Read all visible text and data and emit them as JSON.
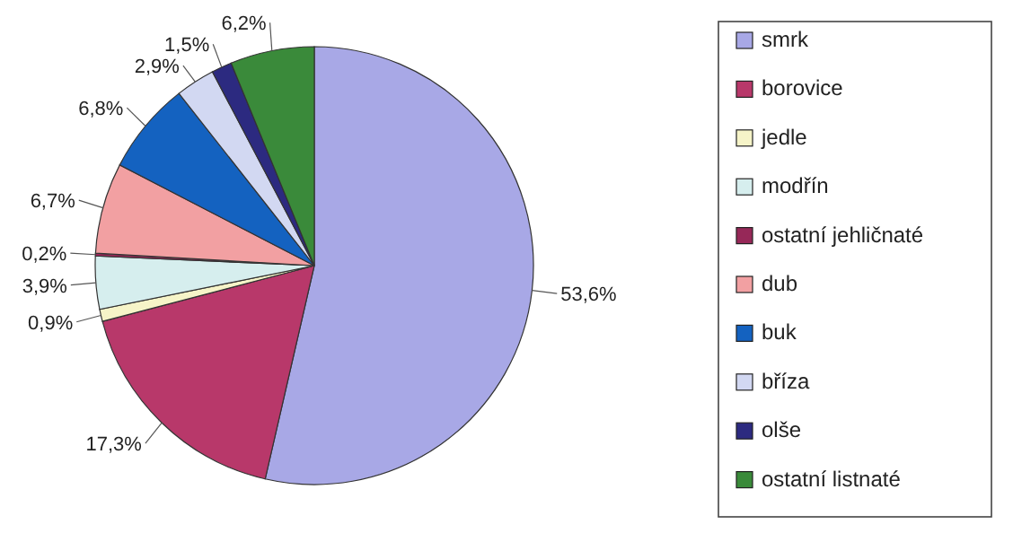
{
  "chart_data": {
    "type": "pie",
    "categories": [
      "smrk",
      "borovice",
      "jedle",
      "modřín",
      "ostatní jehličnaté",
      "dub",
      "buk",
      "bříza",
      "olše",
      "ostatní listnaté"
    ],
    "values": [
      53.6,
      17.3,
      0.9,
      3.9,
      0.2,
      6.7,
      6.8,
      2.9,
      1.5,
      6.2
    ],
    "value_labels": [
      "53,6%",
      "17,3%",
      "0,9%",
      "3,9%",
      "0,2%",
      "6,7%",
      "6,8%",
      "2,9%",
      "1,5%",
      "6,2%"
    ],
    "colors": [
      "#a8a8e6",
      "#b8386a",
      "#f6f4c8",
      "#d6eeee",
      "#962858",
      "#f2a0a2",
      "#1462c0",
      "#d2d8f2",
      "#2c2a80",
      "#3a8a3a"
    ],
    "legend": "right"
  }
}
